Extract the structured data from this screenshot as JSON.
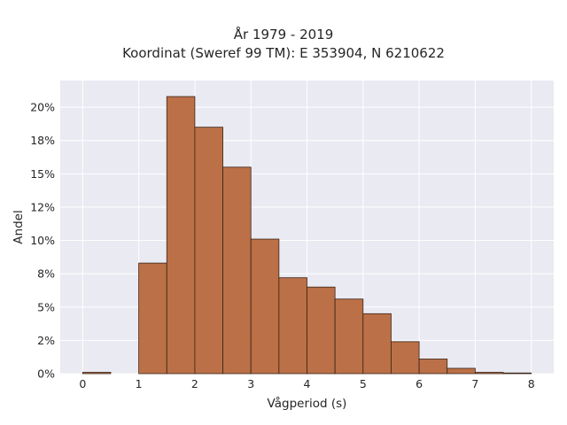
{
  "chart_data": {
    "type": "bar",
    "title": "År 1979 - 2019",
    "subtitle": "Koordinat (Sweref 99 TM): E 353904, N 6210622",
    "xlabel": "Vågperiod (s)",
    "ylabel": "Andel",
    "bin_width": 0.5,
    "bin_starts": [
      0,
      0.5,
      1,
      1.5,
      2,
      2.5,
      3,
      3.5,
      4,
      4.5,
      5,
      5.5,
      6,
      6.5,
      7,
      7.5
    ],
    "values": [
      0.1,
      0,
      8.3,
      20.8,
      18.5,
      15.5,
      10.1,
      7.2,
      6.5,
      5.6,
      4.5,
      2.4,
      1.1,
      0.4,
      0.1,
      0.05
    ],
    "x_ticks": [
      0,
      1,
      2,
      3,
      4,
      5,
      6,
      7,
      8
    ],
    "y_ticks": [
      0,
      2.5,
      5,
      7.5,
      10,
      12.5,
      15,
      17.5,
      20
    ],
    "y_tick_labels": [
      "0%",
      "2%",
      "5%",
      "8%",
      "10%",
      "12%",
      "15%",
      "18%",
      "20%"
    ],
    "xlim": [
      -0.4,
      8.4
    ],
    "ylim": [
      0,
      22
    ],
    "grid": true,
    "colors": {
      "bar_fill": "#b8693d",
      "bar_edge": "#3a2418",
      "plot_background": "#eaeaf2",
      "grid": "#ffffff"
    }
  }
}
